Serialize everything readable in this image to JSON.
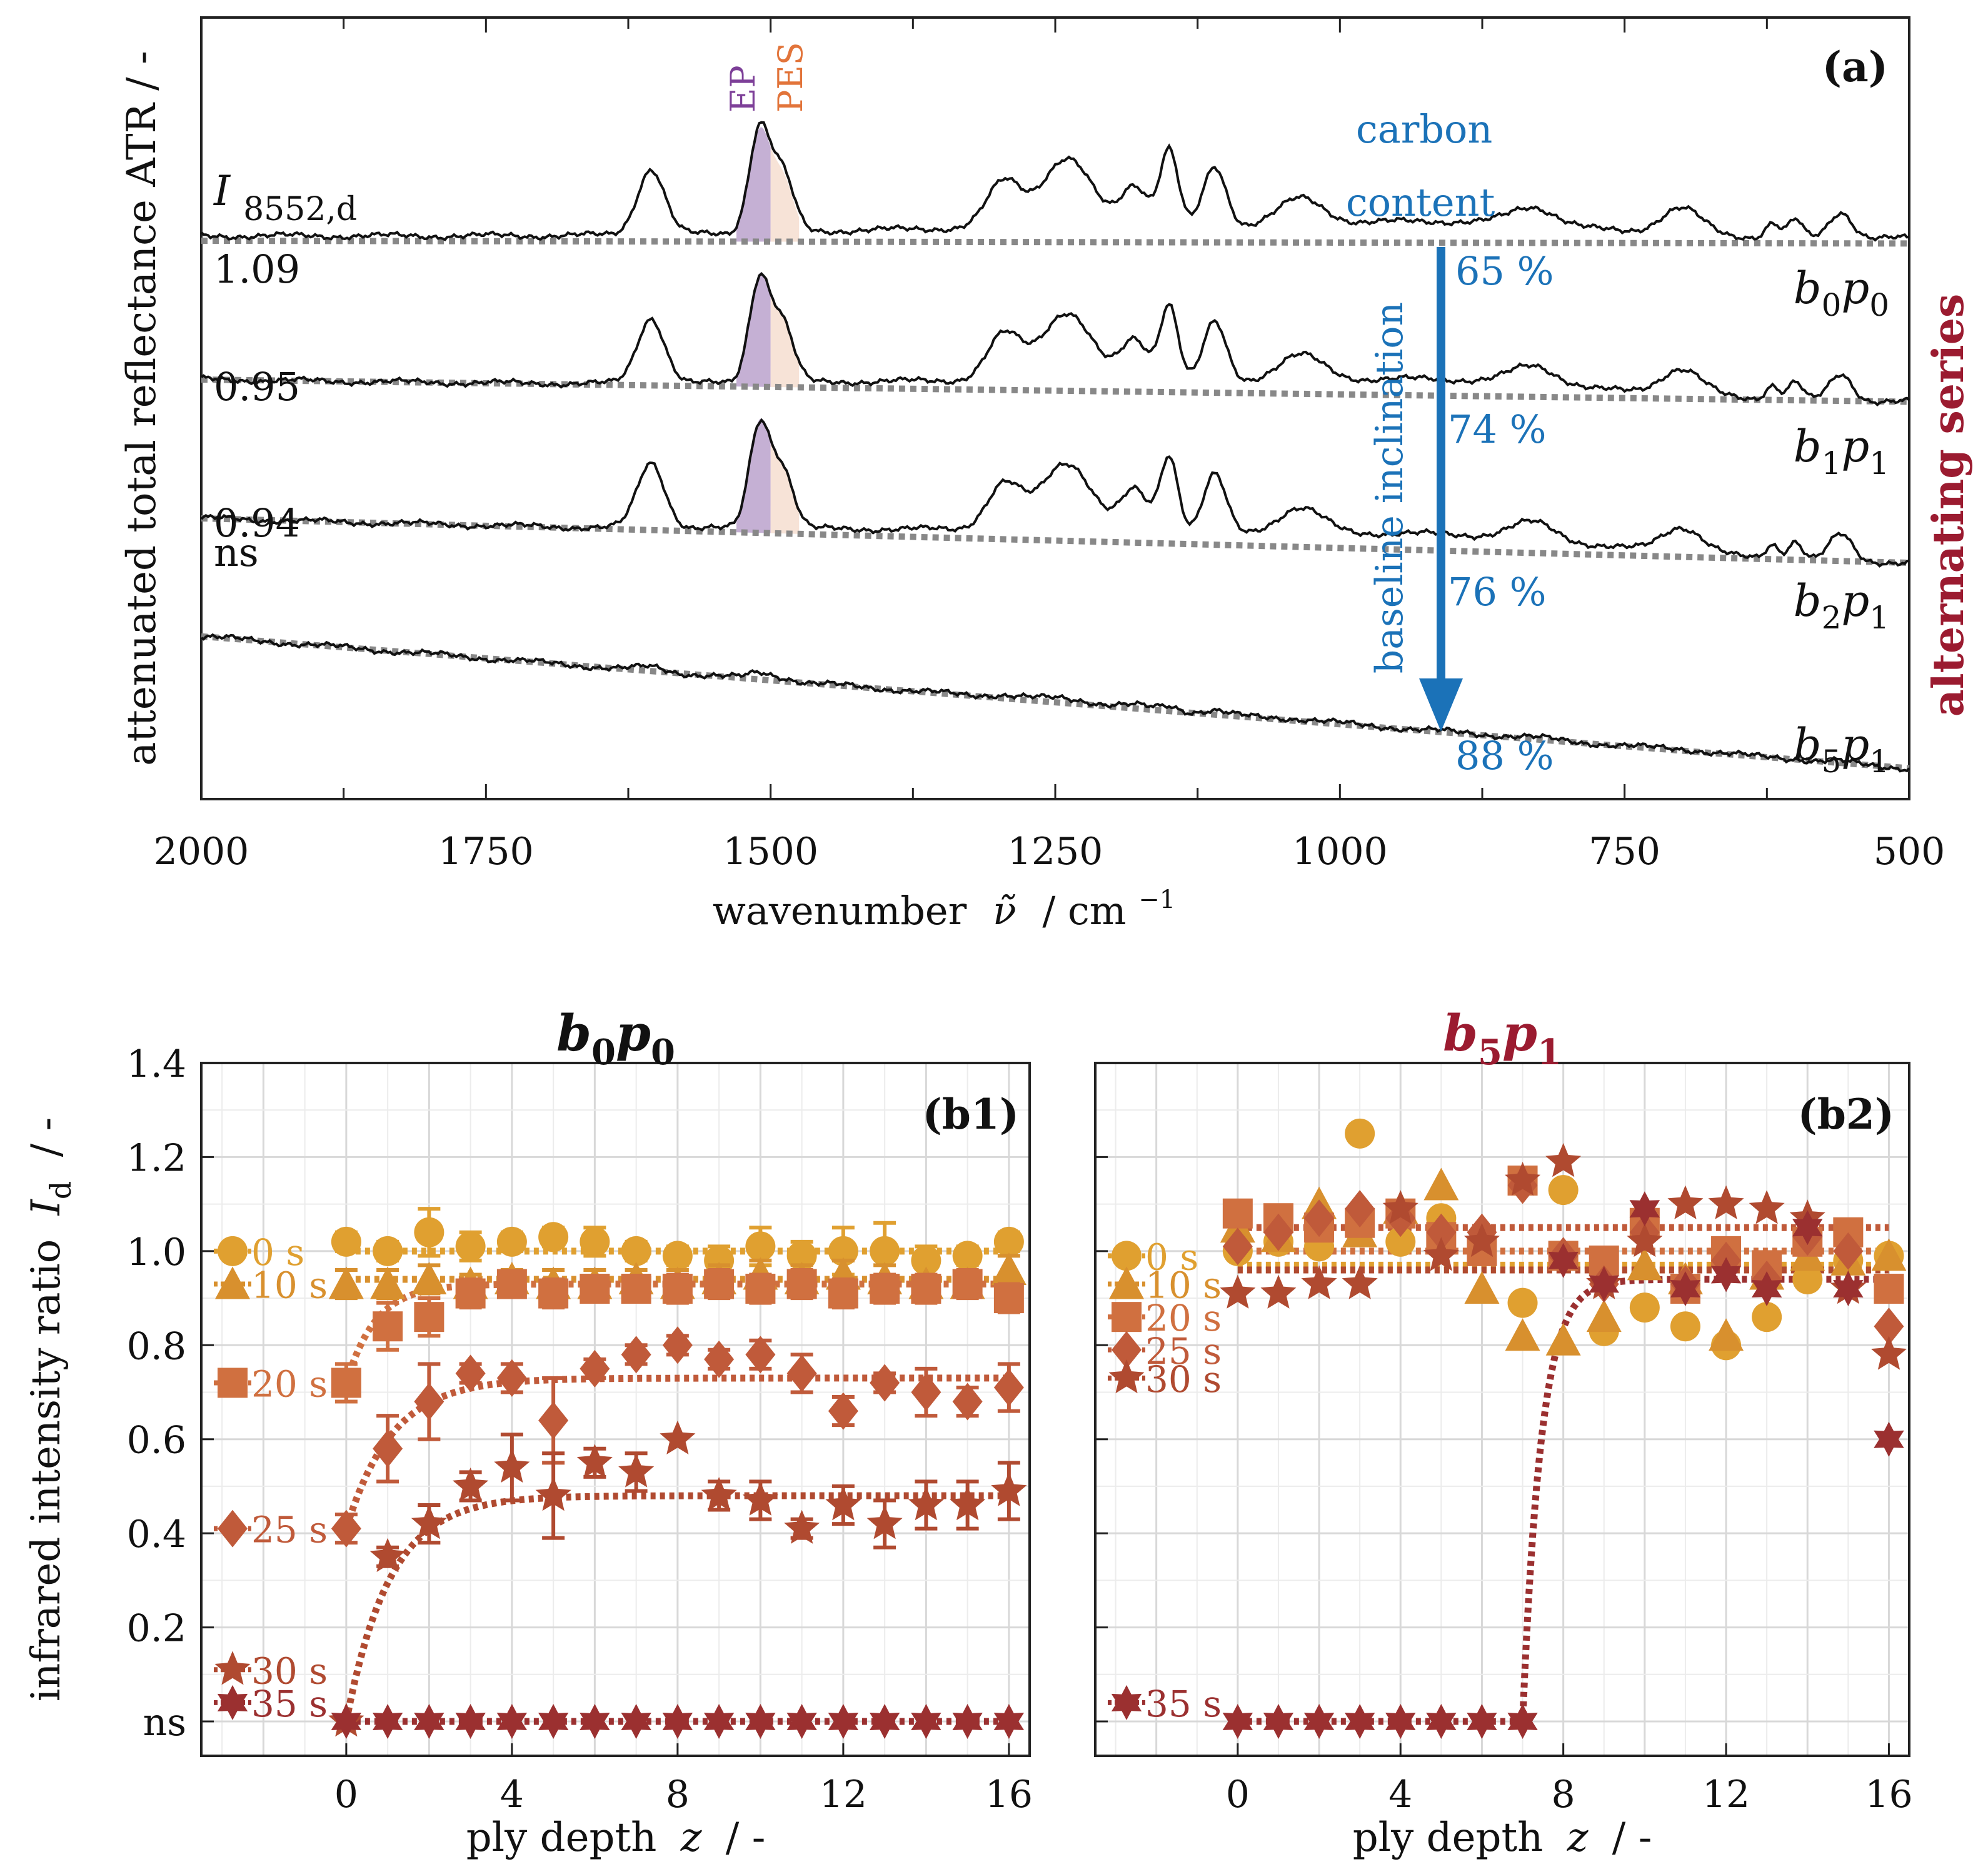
{
  "figure": {
    "panel_a": {
      "tag": "(a)",
      "ylabel": "attenuated total reflectance ATR / -",
      "xlabel_main": "wavenumber",
      "xlabel_symbol": "ν̃",
      "xlabel_unit": "/ cm",
      "xlabel_exp": "−1",
      "side_label": "alternating series",
      "ep_label": "EP",
      "pes_label": "PES",
      "carbon_label_1": "carbon",
      "carbon_label_2": "content",
      "baseline_label": "baseline inclination",
      "intensity_label_I": "I",
      "intensity_label_sub": "8552,d",
      "colors": {
        "blue": "#1b72b8",
        "ep": "#7d3f98",
        "pes": "#e2743a",
        "series": "#9b1b30"
      }
    },
    "panel_b1": {
      "title_b": "b",
      "title_b_sub": "0",
      "title_p": "p",
      "title_p_sub": "0",
      "tag": "(b1)"
    },
    "panel_b2": {
      "title_b": "b",
      "title_b_sub": "5",
      "title_p": "p",
      "title_p_sub": "1",
      "tag": "(b2)"
    },
    "panel_b_common": {
      "ylabel_main": "infrared intensity ratio",
      "ylabel_sym": "I",
      "ylabel_sub": "d",
      "ylabel_unit": "/ -",
      "xlabel_main": "ply depth",
      "xlabel_sym": "z",
      "xlabel_unit": "/ -"
    }
  },
  "chart_data": [
    {
      "type": "line",
      "panel": "a",
      "xlabel": "wavenumber ν̃ / cm−1",
      "ylabel": "attenuated total reflectance ATR / -",
      "xlim": [
        2000,
        500
      ],
      "xticks": [
        2000,
        1750,
        1500,
        1250,
        1000,
        750,
        500
      ],
      "xtick_labels": [
        "2000",
        "1750",
        "1500",
        "1250",
        "1000",
        "750",
        "500"
      ],
      "yticks_visible": false,
      "series": [
        {
          "name": "b0p0",
          "label_b": "b",
          "label_b_sub": "0",
          "label_p": "p",
          "label_p_sub": "0",
          "ratio": "1.09",
          "carbon": "65 %",
          "offset": 0.0,
          "baseline_slope": 0.02
        },
        {
          "name": "b1p1",
          "label_b": "b",
          "label_b_sub": "1",
          "label_p": "p",
          "label_p_sub": "1",
          "ratio": "0.95",
          "carbon": "74 %",
          "offset": 1.0,
          "baseline_slope": 0.16
        },
        {
          "name": "b2p1",
          "label_b": "b",
          "label_b_sub": "2",
          "label_p": "p",
          "label_p_sub": "1",
          "ratio": "0.94",
          "carbon": "76 %",
          "offset": 2.0,
          "baseline_slope": 0.32
        },
        {
          "name": "b5p1",
          "label_b": "b",
          "label_b_sub": "5",
          "label_p": "p",
          "label_p_sub": "1",
          "ratio": "ns",
          "carbon": "88 %",
          "offset": 2.85,
          "baseline_slope": 0.95
        }
      ],
      "peaks": [
        {
          "center": 1605,
          "height": 0.55,
          "width": 12
        },
        {
          "center": 1510,
          "height": 0.85,
          "width": 9
        },
        {
          "center": 1490,
          "height": 0.5,
          "width": 10
        },
        {
          "center": 1295,
          "height": 0.38,
          "width": 15
        },
        {
          "center": 1240,
          "height": 0.58,
          "width": 22
        },
        {
          "center": 1180,
          "height": 0.35,
          "width": 12
        },
        {
          "center": 1150,
          "height": 0.65,
          "width": 8
        },
        {
          "center": 1110,
          "height": 0.5,
          "width": 10
        },
        {
          "center": 1035,
          "height": 0.22,
          "width": 20
        },
        {
          "center": 830,
          "height": 0.15,
          "width": 20
        },
        {
          "center": 700,
          "height": 0.22,
          "width": 18
        },
        {
          "center": 620,
          "height": 0.12,
          "width": 6
        },
        {
          "center": 600,
          "height": 0.15,
          "width": 6
        },
        {
          "center": 560,
          "height": 0.22,
          "width": 10
        }
      ],
      "ep_band": [
        1530,
        1500
      ],
      "pes_band": [
        1500,
        1475
      ]
    },
    {
      "type": "scatter",
      "panel": "b1",
      "title": "b0p0",
      "xlabel": "ply depth z / -",
      "ylabel": "infrared intensity ratio Id / -",
      "xlim": [
        -3.5,
        16.5
      ],
      "ylim": [
        -0.05,
        1.4
      ],
      "xticks": [
        0,
        4,
        8,
        12,
        16
      ],
      "xtick_labels": [
        "0",
        "4",
        "8",
        "12",
        "16"
      ],
      "yticks": [
        0,
        0.2,
        0.4,
        0.6,
        0.8,
        1.0,
        1.2,
        1.4
      ],
      "ytick_labels": [
        "ns",
        "0.2",
        "0.4",
        "0.6",
        "0.8",
        "1.0",
        "1.2",
        "1.4"
      ],
      "series": [
        {
          "name": "0 s",
          "marker": "circle",
          "color": "#e0a030",
          "label_y": 1.0,
          "x": [
            0,
            1,
            2,
            3,
            4,
            5,
            6,
            7,
            8,
            9,
            10,
            11,
            12,
            13,
            14,
            15,
            16
          ],
          "y": [
            1.02,
            1.0,
            1.04,
            1.01,
            1.02,
            1.03,
            1.02,
            1.0,
            0.99,
            0.98,
            1.01,
            0.99,
            1.0,
            1.0,
            0.98,
            0.99,
            1.02
          ],
          "err": [
            0.02,
            0.02,
            0.05,
            0.03,
            0.02,
            0.02,
            0.03,
            0.02,
            0.02,
            0.03,
            0.04,
            0.03,
            0.05,
            0.06,
            0.03,
            0.02,
            0.02
          ],
          "fit": {
            "plateau": 1.0,
            "type": "flat"
          }
        },
        {
          "name": "10 s",
          "marker": "triangle",
          "color": "#d8902e",
          "label_y": 0.93,
          "x": [
            0,
            1,
            2,
            3,
            4,
            5,
            6,
            7,
            8,
            9,
            10,
            11,
            12,
            13,
            14,
            15,
            16
          ],
          "y": [
            0.93,
            0.93,
            0.94,
            0.93,
            0.94,
            0.93,
            0.93,
            0.94,
            0.93,
            0.94,
            0.95,
            0.94,
            0.95,
            0.94,
            0.93,
            0.93,
            0.96
          ],
          "err": [
            0.03,
            0.03,
            0.03,
            0.02,
            0.02,
            0.03,
            0.03,
            0.02,
            0.03,
            0.03,
            0.03,
            0.03,
            0.03,
            0.03,
            0.02,
            0.02,
            0.03
          ],
          "fit": {
            "plateau": 0.94,
            "type": "flat"
          }
        },
        {
          "name": "20 s",
          "marker": "square",
          "color": "#d07040",
          "label_y": 0.72,
          "x": [
            0,
            1,
            2,
            3,
            4,
            5,
            6,
            7,
            8,
            9,
            10,
            11,
            12,
            13,
            14,
            15,
            16
          ],
          "y": [
            0.72,
            0.84,
            0.86,
            0.91,
            0.93,
            0.91,
            0.92,
            0.92,
            0.92,
            0.93,
            0.92,
            0.93,
            0.91,
            0.92,
            0.92,
            0.93,
            0.9
          ],
          "err": [
            0.04,
            0.05,
            0.04,
            0.03,
            0.02,
            0.03,
            0.02,
            0.02,
            0.03,
            0.03,
            0.03,
            0.03,
            0.03,
            0.03,
            0.03,
            0.03,
            0.03
          ],
          "fit": {
            "plateau": 0.93,
            "start": 0.72,
            "k": 1.4,
            "type": "exp"
          }
        },
        {
          "name": "25 s",
          "marker": "diamond",
          "color": "#c05a3a",
          "label_y": 0.41,
          "x": [
            0,
            1,
            2,
            3,
            4,
            5,
            6,
            7,
            8,
            9,
            10,
            11,
            12,
            13,
            14,
            15,
            16
          ],
          "y": [
            0.41,
            0.58,
            0.68,
            0.74,
            0.73,
            0.64,
            0.75,
            0.78,
            0.8,
            0.77,
            0.78,
            0.74,
            0.66,
            0.72,
            0.7,
            0.68,
            0.71
          ],
          "err": [
            0.03,
            0.07,
            0.08,
            0.02,
            0.03,
            0.09,
            0.02,
            0.02,
            0.02,
            0.02,
            0.03,
            0.04,
            0.03,
            0.02,
            0.05,
            0.03,
            0.05
          ],
          "fit": {
            "plateau": 0.73,
            "start": 0.41,
            "k": 0.9,
            "type": "exp"
          }
        },
        {
          "name": "30 s",
          "marker": "star",
          "color": "#b04a30",
          "label_y": 0.11,
          "x": [
            0,
            1,
            2,
            3,
            4,
            5,
            6,
            7,
            8,
            9,
            10,
            11,
            12,
            13,
            14,
            15,
            16
          ],
          "y": [
            0.0,
            0.35,
            0.42,
            0.5,
            0.54,
            0.48,
            0.55,
            0.53,
            0.6,
            0.48,
            0.47,
            0.41,
            0.46,
            0.42,
            0.46,
            0.46,
            0.49
          ],
          "err": [
            0.0,
            0.02,
            0.04,
            0.03,
            0.07,
            0.09,
            0.03,
            0.04,
            0.0,
            0.03,
            0.04,
            0.02,
            0.04,
            0.05,
            0.05,
            0.05,
            0.06
          ],
          "fit": {
            "plateau": 0.48,
            "start": 0.0,
            "k": 0.95,
            "type": "exp"
          }
        },
        {
          "name": "35 s",
          "marker": "hexstar",
          "color": "#9b3030",
          "label_y": 0.04,
          "x": [
            0,
            1,
            2,
            3,
            4,
            5,
            6,
            7,
            8,
            9,
            10,
            11,
            12,
            13,
            14,
            15,
            16
          ],
          "y": [
            0,
            0,
            0,
            0,
            0,
            0,
            0,
            0,
            0,
            0,
            0,
            0,
            0,
            0,
            0,
            0,
            0
          ],
          "err": [
            0,
            0,
            0,
            0,
            0,
            0,
            0,
            0,
            0,
            0,
            0,
            0,
            0,
            0,
            0,
            0,
            0
          ],
          "fit": {
            "plateau": 0.0,
            "type": "flat"
          }
        }
      ]
    },
    {
      "type": "scatter",
      "panel": "b2",
      "title": "b5p1",
      "xlabel": "ply depth z / -",
      "xlim": [
        -3.5,
        16.5
      ],
      "ylim": [
        -0.05,
        1.4
      ],
      "xticks": [
        0,
        4,
        8,
        12,
        16
      ],
      "xtick_labels": [
        "0",
        "4",
        "8",
        "12",
        "16"
      ],
      "series": [
        {
          "name": "0 s",
          "marker": "circle",
          "color": "#e0a030",
          "label_y": 0.99,
          "x": [
            0,
            1,
            2,
            3,
            4,
            5,
            6,
            7,
            8,
            9,
            10,
            11,
            12,
            13,
            14,
            15,
            16
          ],
          "y": [
            1.0,
            1.02,
            1.01,
            1.25,
            1.02,
            1.07,
            1.0,
            0.89,
            1.13,
            0.83,
            0.88,
            0.84,
            0.8,
            0.86,
            0.94,
            0.98,
            0.99
          ],
          "fit": {
            "plateau": 0.97,
            "type": "flat"
          }
        },
        {
          "name": "10 s",
          "marker": "triangle",
          "color": "#d8902e",
          "label_y": 0.93,
          "x": [
            0,
            1,
            2,
            3,
            4,
            5,
            6,
            7,
            8,
            9,
            10,
            11,
            12,
            13,
            14,
            15,
            16
          ],
          "y": [
            1.05,
            1.03,
            1.1,
            1.04,
            1.09,
            1.14,
            0.92,
            0.82,
            0.81,
            0.86,
            0.97,
            0.94,
            0.82,
            0.95,
            0.99,
            0.98,
            0.99
          ],
          "fit": {
            "plateau": 0.96,
            "type": "flat"
          }
        },
        {
          "name": "20 s",
          "marker": "square",
          "color": "#d07040",
          "label_y": 0.86,
          "x": [
            0,
            1,
            2,
            3,
            4,
            5,
            6,
            7,
            8,
            9,
            10,
            11,
            12,
            13,
            14,
            15,
            16
          ],
          "y": [
            1.08,
            1.07,
            1.05,
            1.06,
            1.08,
            1.03,
            1.0,
            1.15,
            0.99,
            0.98,
            1.06,
            0.92,
            1.0,
            0.97,
            1.02,
            1.04,
            0.92
          ],
          "fit": {
            "plateau": 1.0,
            "type": "flat"
          }
        },
        {
          "name": "25 s",
          "marker": "diamond",
          "color": "#c05a3a",
          "label_y": 0.79,
          "x": [
            0,
            1,
            2,
            3,
            4,
            5,
            6,
            7,
            8,
            9,
            10,
            11,
            12,
            13,
            14,
            15,
            16
          ],
          "y": [
            1.01,
            1.04,
            1.07,
            1.09,
            1.07,
            1.04,
            1.04,
            1.14,
            0.99,
            0.93,
            1.04,
            0.93,
            0.98,
            0.94,
            1.03,
            1.0,
            0.84
          ],
          "fit": {
            "plateau": 1.05,
            "type": "flat"
          }
        },
        {
          "name": "30 s",
          "marker": "star",
          "color": "#b04a30",
          "label_y": 0.73,
          "x": [
            0,
            1,
            2,
            3,
            4,
            5,
            6,
            7,
            8,
            9,
            10,
            11,
            12,
            13,
            14,
            15,
            16
          ],
          "y": [
            0.91,
            0.91,
            0.93,
            0.93,
            1.09,
            0.99,
            1.02,
            1.15,
            1.19,
            0.93,
            1.02,
            1.1,
            1.1,
            1.09,
            1.07,
            0.92,
            0.78
          ],
          "fit": {
            "plateau": 0.96,
            "type": "flat"
          }
        },
        {
          "name": "35 s",
          "marker": "hexstar",
          "color": "#9b3030",
          "label_y": 0.04,
          "x": [
            0,
            1,
            2,
            3,
            4,
            5,
            6,
            7,
            8,
            9,
            10,
            11,
            12,
            13,
            14,
            15,
            16
          ],
          "y": [
            0,
            0,
            0,
            0,
            0,
            0,
            0,
            0,
            0.98,
            0.93,
            1.09,
            0.92,
            0.95,
            0.92,
            1.05,
            0.92,
            0.6
          ],
          "fit": {
            "plateau": 0.94,
            "type": "step",
            "step_at": 7
          }
        }
      ]
    }
  ]
}
